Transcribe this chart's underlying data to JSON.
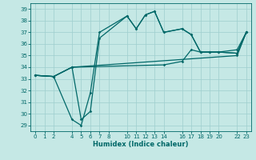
{
  "xlabel": "Humidex (Indice chaleur)",
  "bg_color": "#c5e8e5",
  "grid_color": "#9ecece",
  "line_color": "#006868",
  "ylim": [
    28.5,
    39.5
  ],
  "xlim": [
    -0.5,
    23.5
  ],
  "yticks": [
    29,
    30,
    31,
    32,
    33,
    34,
    35,
    36,
    37,
    38,
    39
  ],
  "xticks": [
    0,
    1,
    2,
    4,
    5,
    6,
    7,
    8,
    10,
    11,
    12,
    13,
    14,
    16,
    17,
    18,
    19,
    20,
    22,
    23
  ],
  "line1_x": [
    0,
    2,
    4,
    22,
    23
  ],
  "line1_y": [
    33.3,
    33.2,
    34.0,
    35.0,
    37.0
  ],
  "line2_x": [
    0,
    2,
    4,
    5,
    6,
    7,
    10,
    11,
    12,
    13,
    14,
    16,
    17,
    18,
    19,
    20,
    22,
    23
  ],
  "line2_y": [
    33.3,
    33.2,
    29.5,
    29.0,
    31.8,
    37.0,
    38.4,
    37.3,
    38.5,
    38.8,
    37.0,
    37.3,
    36.8,
    35.3,
    35.3,
    35.3,
    35.2,
    37.0
  ],
  "line3_x": [
    0,
    2,
    4,
    5,
    6,
    7,
    10,
    11,
    12,
    13,
    14,
    16,
    17,
    18,
    19,
    20,
    22,
    23
  ],
  "line3_y": [
    33.3,
    33.2,
    34.0,
    29.5,
    30.2,
    36.5,
    38.4,
    37.3,
    38.5,
    38.8,
    37.0,
    37.3,
    36.8,
    35.3,
    35.3,
    35.3,
    35.2,
    37.0
  ],
  "line4_x": [
    0,
    2,
    4,
    14,
    16,
    17,
    18,
    19,
    20,
    22,
    23
  ],
  "line4_y": [
    33.3,
    33.2,
    34.0,
    34.2,
    34.5,
    35.5,
    35.3,
    35.3,
    35.3,
    35.5,
    37.0
  ]
}
